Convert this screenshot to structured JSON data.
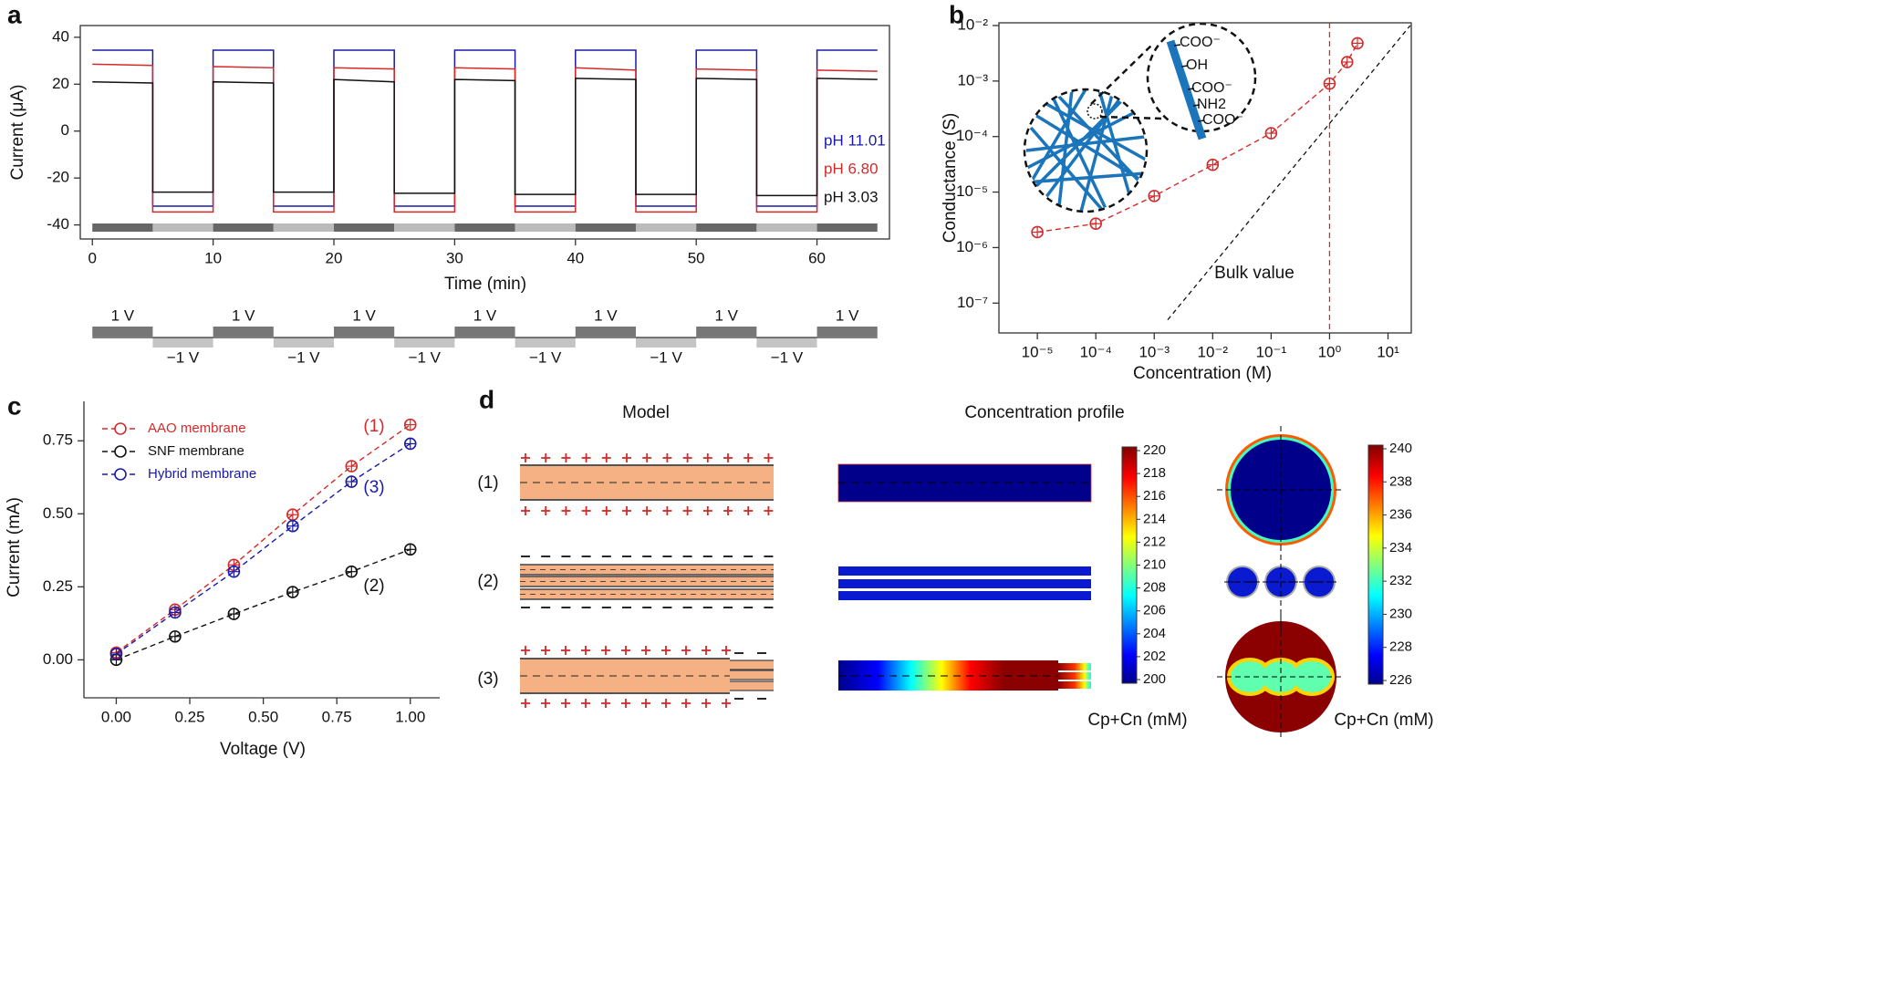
{
  "chart_data": [
    {
      "type": "line",
      "panel_label": "a",
      "x_label": "Time (min)",
      "y_label": "Current (μA)",
      "x": [
        0,
        5,
        5,
        10,
        10,
        15,
        15,
        20,
        20,
        25,
        25,
        30,
        30,
        35,
        35,
        40,
        40,
        45,
        45,
        50,
        50,
        55,
        55,
        60,
        60,
        65
      ],
      "series": [
        {
          "name": "pH 11.01",
          "color": "#1a1aa6",
          "values": [
            34.5,
            34.5,
            -32,
            -32,
            34.5,
            34.5,
            -32,
            -32,
            34.5,
            34.5,
            -32,
            -32,
            34.5,
            34.5,
            -32,
            -32,
            34.5,
            34.5,
            -32,
            -32,
            34.5,
            34.5,
            -32,
            -32,
            34.5,
            34.5
          ]
        },
        {
          "name": "pH 6.80",
          "color": "#d42a2a",
          "values": [
            28.5,
            28,
            -34.5,
            -34.5,
            27.5,
            27,
            -34.5,
            -34.5,
            27,
            26.5,
            -34.5,
            -34.5,
            27,
            26.5,
            -34.5,
            -34.5,
            27,
            26,
            -34.5,
            -34.5,
            26.5,
            26,
            -34.5,
            -34.5,
            26,
            25.5
          ]
        },
        {
          "name": "pH 3.03",
          "color": "#111111",
          "values": [
            21,
            20.5,
            -26,
            -26,
            21,
            20.5,
            -26,
            -26,
            22,
            21,
            -26.5,
            -26.5,
            22,
            21.5,
            -27,
            -27,
            22.5,
            22,
            -27,
            -27,
            22.5,
            22,
            -27.5,
            -27.5,
            22.5,
            22
          ]
        }
      ],
      "xlim": [
        -1,
        66
      ],
      "ylim": [
        -46,
        45
      ],
      "xticks": [
        0,
        10,
        20,
        30,
        40,
        50,
        60
      ],
      "yticks": [
        -40,
        -20,
        0,
        20,
        40
      ],
      "voltage_labels": {
        "on": "1 V",
        "off": "−1 V"
      }
    },
    {
      "type": "scatter",
      "panel_label": "b",
      "x_label": "Concentration (M)",
      "y_label": "Conductance (S)",
      "log_x": true,
      "log_y": true,
      "x": [
        1e-05,
        0.0001,
        0.001,
        0.01,
        0.1,
        1,
        2,
        3
      ],
      "values": [
        1.9e-06,
        2.7e-06,
        8.5e-06,
        3.1e-05,
        0.000115,
        0.0009,
        0.0022,
        0.0048
      ],
      "color": "#d42a2a",
      "bulk_line": {
        "x": [
          0.0017,
          24
        ],
        "values": [
          5e-08,
          0.01
        ],
        "label": "Bulk value"
      },
      "reference_x": 1,
      "xlim": [
        2.2e-06,
        25
      ],
      "ylim": [
        2.9e-08,
        0.0112
      ],
      "xticks": [
        {
          "value": 1e-05,
          "label": "10⁻⁵"
        },
        {
          "value": 0.0001,
          "label": "10⁻⁴"
        },
        {
          "value": 0.001,
          "label": "10⁻³"
        },
        {
          "value": 0.01,
          "label": "10⁻²"
        },
        {
          "value": 0.1,
          "label": "10⁻¹"
        },
        {
          "value": 1,
          "label": "10⁰"
        },
        {
          "value": 10,
          "label": "10¹"
        }
      ],
      "yticks": [
        {
          "value": 1e-07,
          "label": "10⁻⁷"
        },
        {
          "value": 1e-06,
          "label": "10⁻⁶"
        },
        {
          "value": 1e-05,
          "label": "10⁻⁵"
        },
        {
          "value": 0.0001,
          "label": "10⁻⁴"
        },
        {
          "value": 0.001,
          "label": "10⁻³"
        },
        {
          "value": 0.01,
          "label": "10⁻²"
        }
      ],
      "inset_labels": [
        "COO⁻",
        "OH",
        "COO⁻",
        "NH2",
        "COO⁻"
      ]
    },
    {
      "type": "scatter",
      "panel_label": "c",
      "x_label": "Voltage (V)",
      "y_label": "Current (mA)",
      "x": [
        0,
        0.2,
        0.4,
        0.6,
        0.8,
        1
      ],
      "series": [
        {
          "name": "AAO membrane",
          "color": "#d42a2a",
          "values": [
            0.025,
            0.172,
            0.325,
            0.497,
            0.663,
            0.805
          ]
        },
        {
          "name": "SNF membrane",
          "color": "#111111",
          "values": [
            0.0,
            0.08,
            0.157,
            0.232,
            0.302,
            0.378
          ]
        },
        {
          "name": "Hybrid membrane",
          "color": "#1a1aa6",
          "values": [
            0.02,
            0.162,
            0.302,
            0.458,
            0.61,
            0.74
          ]
        }
      ],
      "annotations": [
        "(1)",
        "(2)",
        "(3)"
      ],
      "legend": "top-left",
      "xlim": [
        -0.11,
        1.1
      ],
      "ylim": [
        -0.13,
        0.885
      ],
      "xticks": [
        {
          "value": 0,
          "label": "0.00"
        },
        {
          "value": 0.25,
          "label": "0.25"
        },
        {
          "value": 0.5,
          "label": "0.50"
        },
        {
          "value": 0.75,
          "label": "0.75"
        },
        {
          "value": 1,
          "label": "1.00"
        }
      ],
      "yticks": [
        {
          "value": 0,
          "label": "0.00"
        },
        {
          "value": 0.25,
          "label": "0.25"
        },
        {
          "value": 0.5,
          "label": "0.50"
        },
        {
          "value": 0.75,
          "label": "0.75"
        }
      ]
    }
  ],
  "diagram": {
    "panel_label": "d",
    "headers": [
      "Model",
      "Concentration profile"
    ],
    "rows": [
      "(1)",
      "(2)",
      "(3)"
    ],
    "colorbars": [
      {
        "ticks": [
          200,
          202,
          204,
          206,
          208,
          210,
          212,
          214,
          216,
          218,
          220
        ],
        "label": "Cp+Cn (mM)"
      },
      {
        "ticks": [
          226,
          228,
          230,
          232,
          234,
          236,
          238,
          240
        ],
        "label": "Cp+Cn (mM)"
      }
    ]
  }
}
